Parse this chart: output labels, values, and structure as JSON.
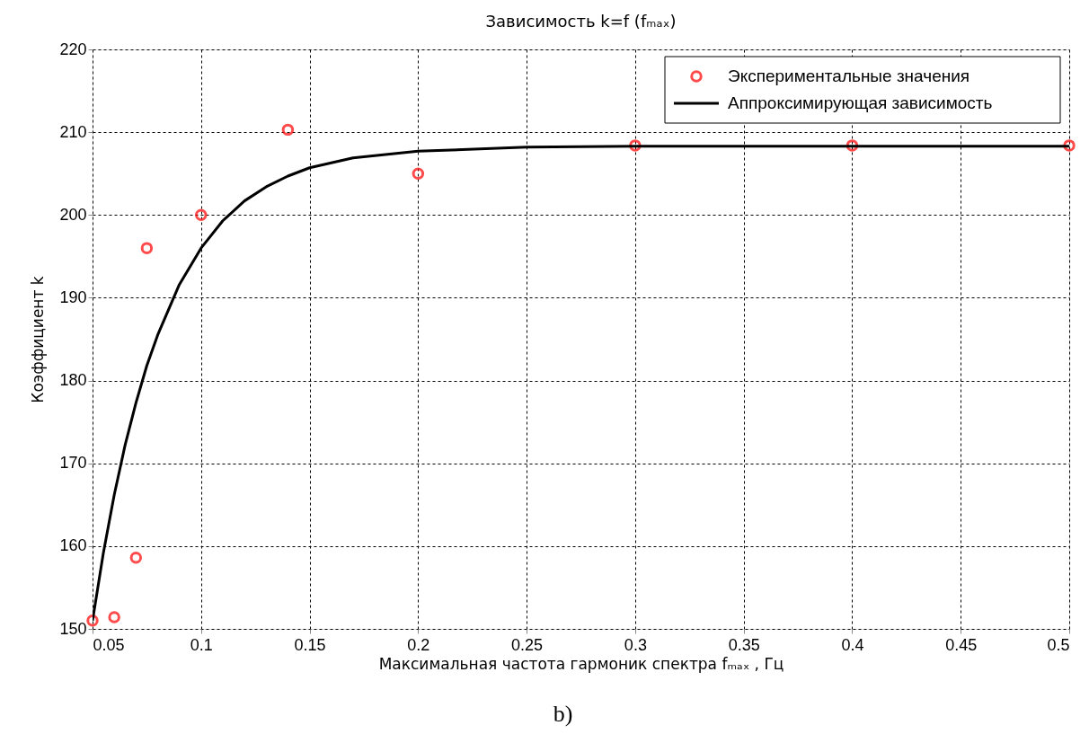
{
  "chart_data": {
    "type": "scatter",
    "title": "Зависимость    k=f (fₘₐₓ)",
    "xlabel": "Максимальная частота гармоник спектра  fₘₐₓ , Гц",
    "ylabel": "Коэффициент   k",
    "annotations": [
      "b)"
    ],
    "xlim": [
      0.05,
      0.5
    ],
    "xticks": [
      0.05,
      0.1,
      0.15,
      0.2,
      0.25,
      0.3,
      0.35,
      0.4,
      0.45,
      0.5
    ],
    "ylim": [
      150,
      220
    ],
    "yticks": [
      150,
      160,
      170,
      180,
      190,
      200,
      210,
      220
    ],
    "grid": true,
    "legend": "top right",
    "series": [
      {
        "name": "Экспериментальные значения",
        "type": "scatter",
        "marker": "circle",
        "color": "#ff0000",
        "x": [
          0.05,
          0.06,
          0.07,
          0.075,
          0.1,
          0.14,
          0.2,
          0.3,
          0.4,
          0.5
        ],
        "values": [
          151.0,
          151.4,
          158.6,
          196.0,
          200.0,
          210.3,
          205.0,
          208.4,
          208.4,
          208.4
        ]
      },
      {
        "name": "Аппроксимирующая зависимость",
        "type": "line",
        "marker": "none",
        "line_style": "solid",
        "color": "#000000",
        "x": [
          0.05,
          0.055,
          0.06,
          0.065,
          0.07,
          0.075,
          0.08,
          0.09,
          0.1,
          0.11,
          0.12,
          0.13,
          0.14,
          0.15,
          0.17,
          0.2,
          0.25,
          0.3,
          0.4,
          0.5
        ],
        "values": [
          151.0,
          159.2,
          166.2,
          172.2,
          177.3,
          181.8,
          185.5,
          191.6,
          196.0,
          199.3,
          201.7,
          203.4,
          204.7,
          205.7,
          206.9,
          207.7,
          208.2,
          208.3,
          208.3,
          208.3
        ]
      }
    ]
  }
}
